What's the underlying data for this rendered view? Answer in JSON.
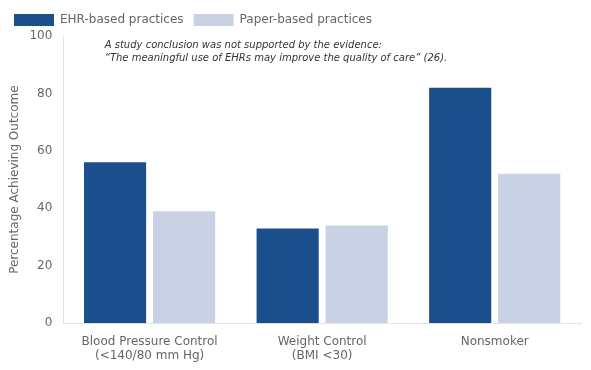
{
  "chart_data": {
    "type": "bar",
    "categories": [
      "Blood Pressure Control\n(<140/80 mm Hg)",
      "Weight Control\n(BMI <30)",
      "Nonsmoker"
    ],
    "series": [
      {
        "name": "EHR-based practices",
        "color": "#1B4F8C",
        "values": [
          56,
          33,
          82
        ]
      },
      {
        "name": "Paper-based practices",
        "color": "#C8D2E4",
        "values": [
          39,
          34,
          52
        ]
      }
    ],
    "ylabel": "Percentage Achieving Outcome",
    "ylim": [
      0,
      100
    ],
    "yticks": [
      0,
      20,
      40,
      60,
      80,
      100
    ],
    "annotations": [
      "A study conclusion was not supported by the evidence:",
      "“The meaningful use of EHRs may improve the quality of care” (26)."
    ],
    "grid": false,
    "legend": "upper left"
  }
}
